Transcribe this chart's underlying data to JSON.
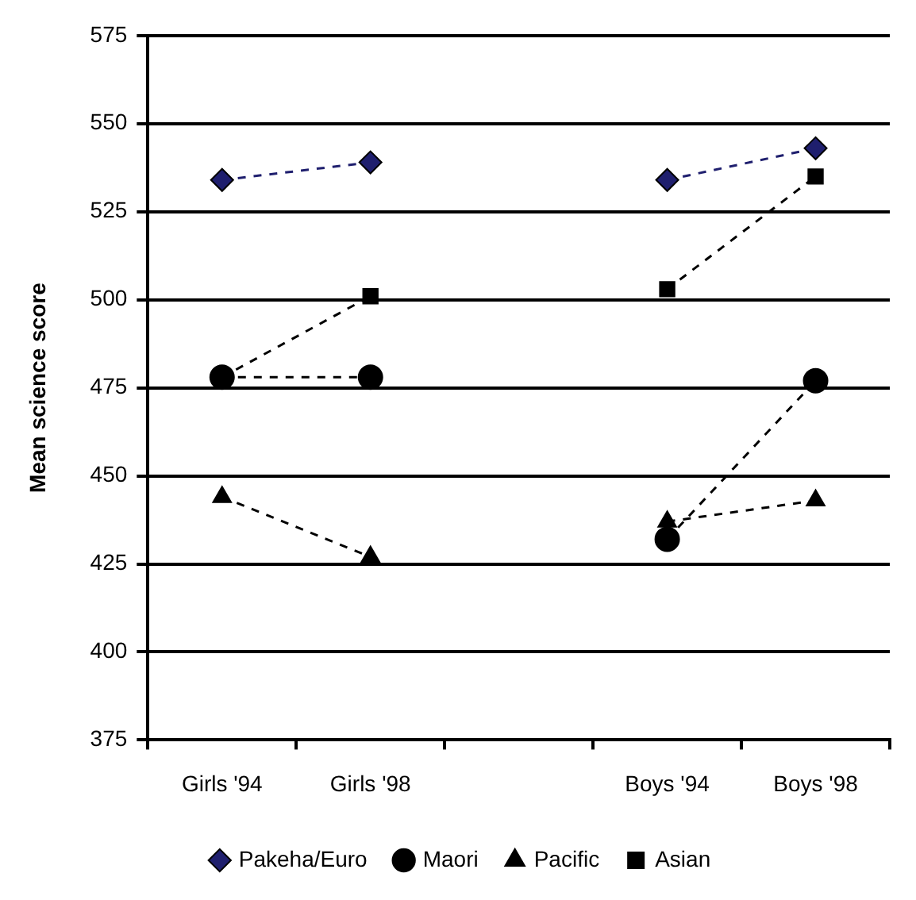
{
  "chart_data": {
    "type": "line",
    "ylabel": "Mean science score",
    "categories": [
      "Girls '94",
      "Girls '98",
      null,
      "Boys '94",
      "Boys '98"
    ],
    "series": [
      {
        "name": "Pakeha/Euro",
        "color": "#1f1f6e",
        "marker": "diamond",
        "line_style": "dashed",
        "values": [
          534,
          539,
          null,
          534,
          543
        ]
      },
      {
        "name": "Maori",
        "color": "#000000",
        "marker": "circle",
        "line_style": "dashed",
        "values": [
          478,
          478,
          null,
          432,
          477
        ]
      },
      {
        "name": "Pacific",
        "color": "#000000",
        "marker": "triangle",
        "line_style": "dashed",
        "values": [
          444,
          427,
          null,
          437,
          443
        ]
      },
      {
        "name": "Asian",
        "color": "#000000",
        "marker": "square",
        "line_style": "dashed",
        "values": [
          478,
          501,
          null,
          503,
          535
        ]
      }
    ],
    "ylim": [
      375,
      575
    ],
    "yticks": [
      375,
      400,
      425,
      450,
      475,
      500,
      525,
      550,
      575
    ],
    "grid": "y",
    "legend": "bottom"
  }
}
